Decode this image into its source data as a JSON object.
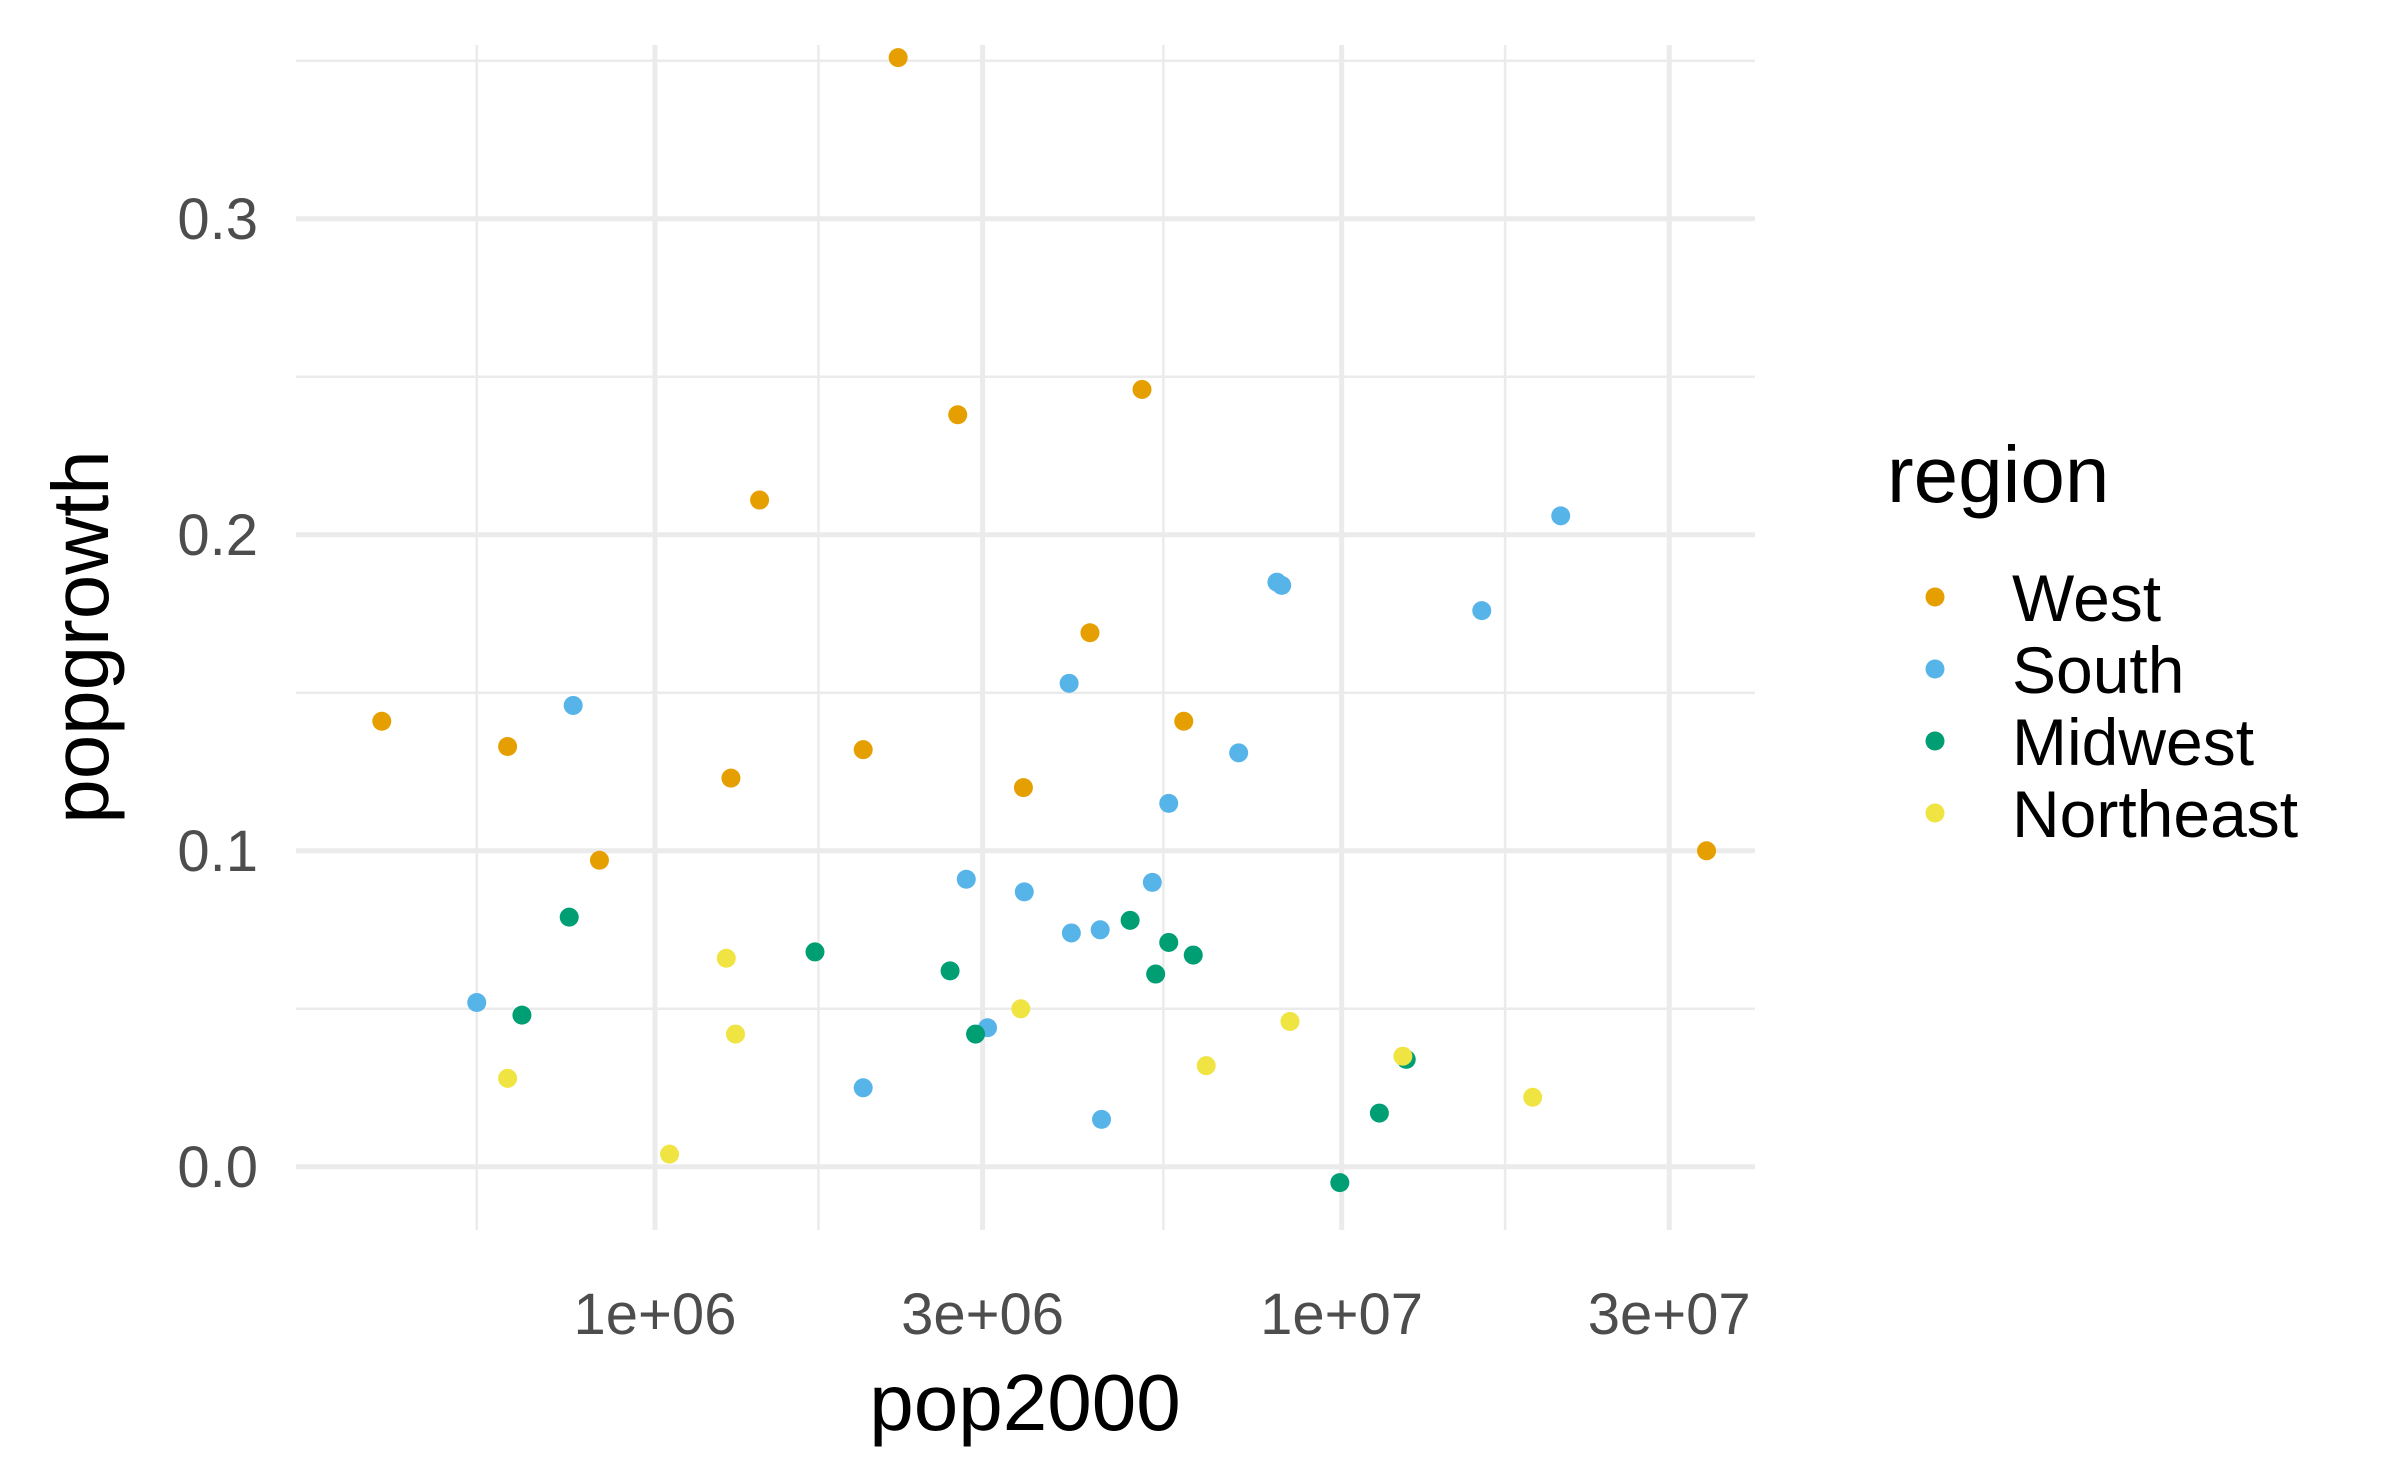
{
  "chart_data": {
    "type": "scatter",
    "xlabel": "pop2000",
    "ylabel": "popgrowth",
    "x_scale": "log10",
    "xlim": [
      300000,
      40000000
    ],
    "ylim": [
      -0.02,
      0.355
    ],
    "x_ticks": [
      {
        "value": 1000000,
        "label": "1e+06"
      },
      {
        "value": 3000000,
        "label": "3e+06"
      },
      {
        "value": 10000000,
        "label": "1e+07"
      },
      {
        "value": 30000000,
        "label": "3e+07"
      }
    ],
    "x_minor_ticks": [
      550000,
      1730000,
      5500000,
      17300000
    ],
    "y_ticks": [
      {
        "value": 0.0,
        "label": "0.0"
      },
      {
        "value": 0.1,
        "label": "0.1"
      },
      {
        "value": 0.2,
        "label": "0.2"
      },
      {
        "value": 0.3,
        "label": "0.3"
      }
    ],
    "y_minor_ticks": [
      0.05,
      0.15,
      0.25,
      0.35
    ],
    "grid": true,
    "legend": {
      "title": "region",
      "position": "right"
    },
    "series": [
      {
        "name": "West",
        "color": "#E69F00",
        "points": [
          {
            "x": 400000,
            "y": 0.141
          },
          {
            "x": 610000,
            "y": 0.133
          },
          {
            "x": 830000,
            "y": 0.097
          },
          {
            "x": 1290000,
            "y": 0.123
          },
          {
            "x": 1420000,
            "y": 0.211
          },
          {
            "x": 2010000,
            "y": 0.132
          },
          {
            "x": 2260000,
            "y": 0.351
          },
          {
            "x": 2760000,
            "y": 0.238
          },
          {
            "x": 3440000,
            "y": 0.12
          },
          {
            "x": 4300000,
            "y": 0.169
          },
          {
            "x": 5120000,
            "y": 0.246
          },
          {
            "x": 5890000,
            "y": 0.141
          },
          {
            "x": 34000000,
            "y": 0.1
          }
        ]
      },
      {
        "name": "South",
        "color": "#56B4E9",
        "points": [
          {
            "x": 550000,
            "y": 0.052
          },
          {
            "x": 760000,
            "y": 0.146
          },
          {
            "x": 2010000,
            "y": 0.025
          },
          {
            "x": 2840000,
            "y": 0.091
          },
          {
            "x": 3050000,
            "y": 0.044
          },
          {
            "x": 3450000,
            "y": 0.087
          },
          {
            "x": 4010000,
            "y": 0.153
          },
          {
            "x": 4040000,
            "y": 0.074
          },
          {
            "x": 4450000,
            "y": 0.075
          },
          {
            "x": 4470000,
            "y": 0.015
          },
          {
            "x": 5300000,
            "y": 0.09
          },
          {
            "x": 5600000,
            "y": 0.115
          },
          {
            "x": 7080000,
            "y": 0.131
          },
          {
            "x": 8050000,
            "y": 0.185
          },
          {
            "x": 8180000,
            "y": 0.184
          },
          {
            "x": 16000000,
            "y": 0.176
          },
          {
            "x": 20850000,
            "y": 0.206
          }
        ]
      },
      {
        "name": "Midwest",
        "color": "#009E73",
        "points": [
          {
            "x": 640000,
            "y": 0.048
          },
          {
            "x": 750000,
            "y": 0.079
          },
          {
            "x": 1710000,
            "y": 0.068
          },
          {
            "x": 2690000,
            "y": 0.062
          },
          {
            "x": 2930000,
            "y": 0.042
          },
          {
            "x": 4920000,
            "y": 0.078
          },
          {
            "x": 5360000,
            "y": 0.061
          },
          {
            "x": 5600000,
            "y": 0.071
          },
          {
            "x": 6080000,
            "y": 0.067
          },
          {
            "x": 9940000,
            "y": -0.005
          },
          {
            "x": 11350000,
            "y": 0.017
          },
          {
            "x": 12420000,
            "y": 0.034
          }
        ]
      },
      {
        "name": "Northeast",
        "color": "#F0E442",
        "points": [
          {
            "x": 610000,
            "y": 0.028
          },
          {
            "x": 1050000,
            "y": 0.004
          },
          {
            "x": 1270000,
            "y": 0.066
          },
          {
            "x": 1310000,
            "y": 0.042
          },
          {
            "x": 3410000,
            "y": 0.05
          },
          {
            "x": 6350000,
            "y": 0.032
          },
          {
            "x": 8410000,
            "y": 0.046
          },
          {
            "x": 12280000,
            "y": 0.035
          },
          {
            "x": 18980000,
            "y": 0.022
          }
        ]
      }
    ]
  }
}
